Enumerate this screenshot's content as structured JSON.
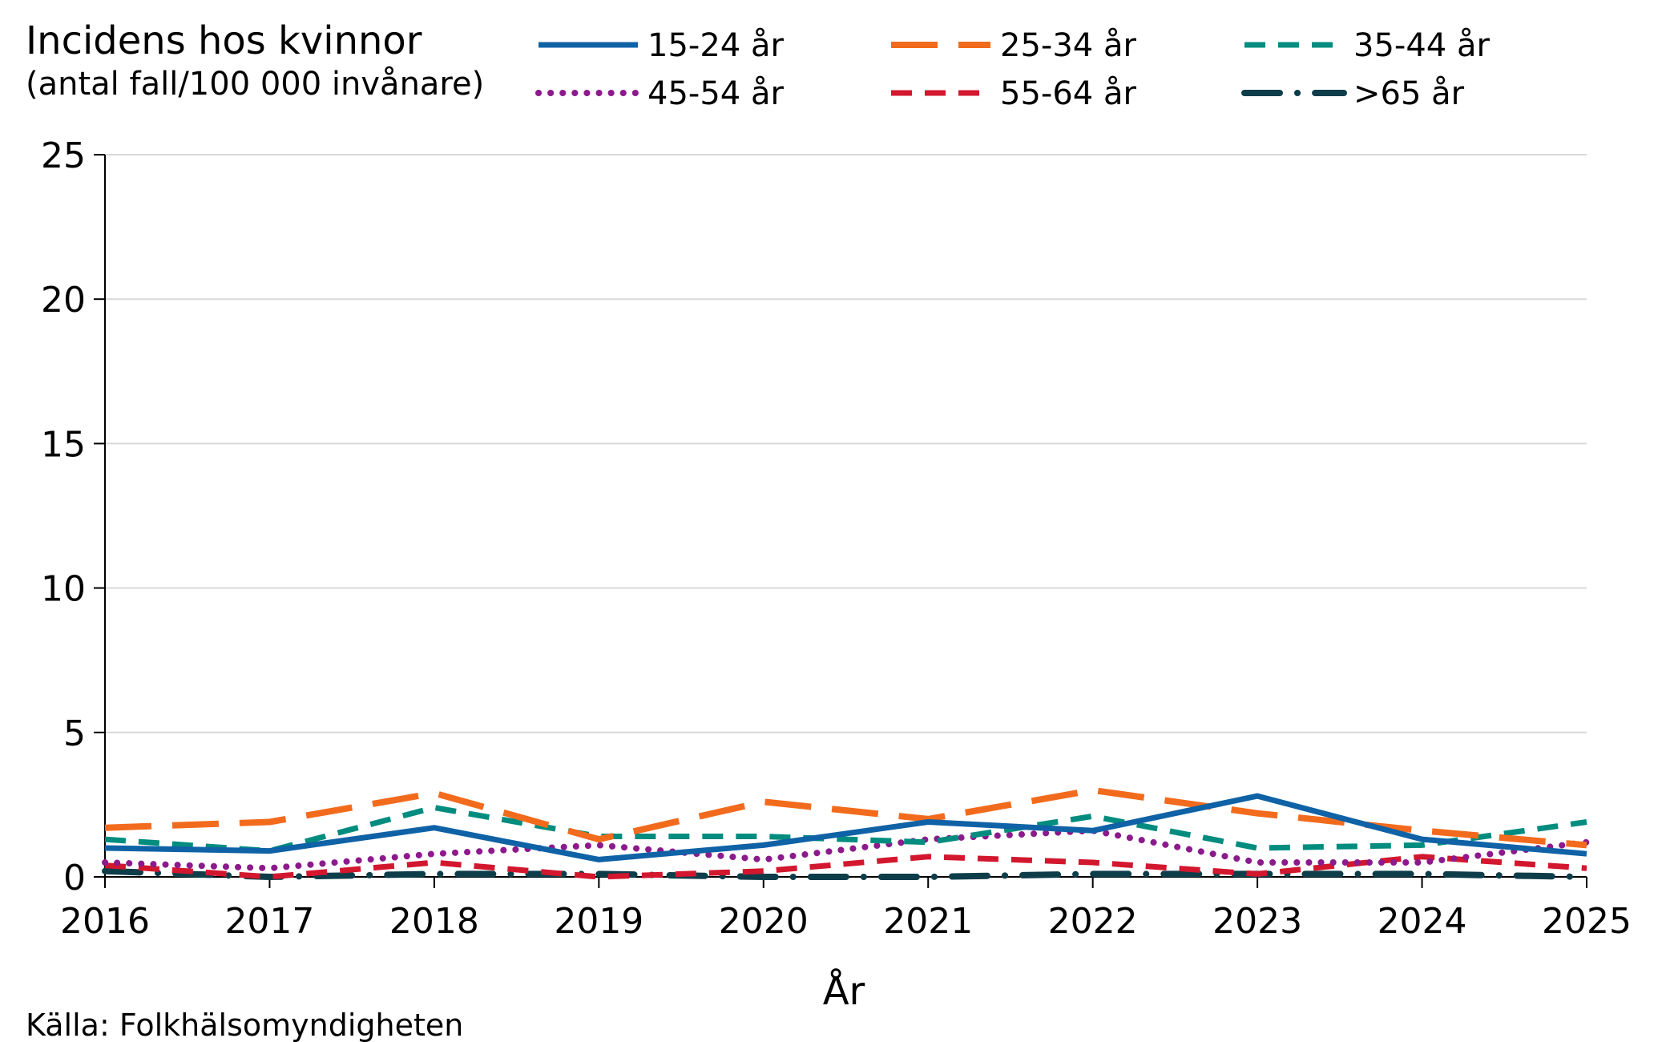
{
  "chart_data": {
    "type": "line",
    "title": "Incidens hos kvinnor",
    "subtitle": "(antal fall/100 000 invånare)",
    "xlabel": "År",
    "ylabel": "",
    "source": "Källa: Folkhälsomyndigheten",
    "x": [
      "2016",
      "2017",
      "2018",
      "2019",
      "2020",
      "2021",
      "2022",
      "2023",
      "2024",
      "2025"
    ],
    "ylim": [
      0,
      25
    ],
    "yticks": [
      "0",
      "5",
      "10",
      "15",
      "20",
      "25"
    ],
    "grid": true,
    "legend_position": "top",
    "series": [
      {
        "name": "15-24 år",
        "color": "#0f62a6",
        "dash": "solid",
        "values": [
          1.0,
          0.9,
          1.7,
          0.6,
          1.1,
          1.9,
          1.6,
          2.8,
          1.3,
          0.8
        ]
      },
      {
        "name": "25-34 år",
        "color": "#f26b1d",
        "dash": "longdash",
        "values": [
          1.7,
          1.9,
          2.9,
          1.3,
          2.6,
          2.0,
          3.0,
          2.2,
          1.6,
          1.1
        ]
      },
      {
        "name": "35-44 år",
        "color": "#008c7e",
        "dash": "dash",
        "values": [
          1.3,
          0.9,
          2.4,
          1.4,
          1.4,
          1.2,
          2.1,
          1.0,
          1.1,
          1.9
        ]
      },
      {
        "name": "45-54 år",
        "color": "#8c1a8c",
        "dash": "dot",
        "values": [
          0.5,
          0.3,
          0.8,
          1.1,
          0.6,
          1.3,
          1.6,
          0.5,
          0.5,
          1.2
        ]
      },
      {
        "name": "55-64 år",
        "color": "#d2172e",
        "dash": "dash",
        "values": [
          0.4,
          0.0,
          0.5,
          0.0,
          0.2,
          0.7,
          0.5,
          0.1,
          0.7,
          0.3
        ]
      },
      {
        "name": ">65 år",
        "color": "#0e3d4a",
        "dash": "dashdot",
        "values": [
          0.2,
          0.0,
          0.1,
          0.1,
          0.0,
          0.0,
          0.1,
          0.1,
          0.1,
          0.0
        ]
      }
    ]
  }
}
